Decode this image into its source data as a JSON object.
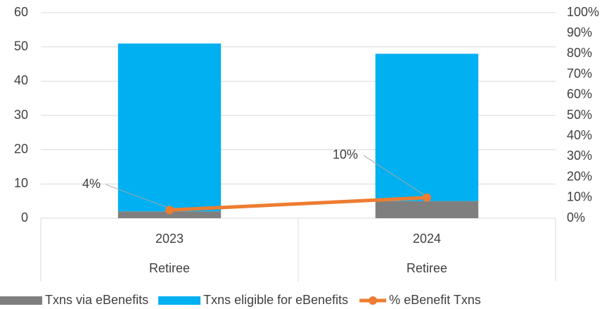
{
  "chart_data": {
    "type": "bar",
    "categories": [
      "2023",
      "2024"
    ],
    "groups": [
      "Retiree",
      "Retiree"
    ],
    "stacked": true,
    "series": [
      {
        "name": "Txns via eBenefits",
        "color": "#7f7f7f",
        "values": [
          2,
          5
        ]
      },
      {
        "name": "Txns eligible for eBenefits",
        "color": "#00b0f0",
        "values": [
          49,
          43
        ]
      },
      {
        "name": "% eBenefit Txns",
        "color": "#ed7d31",
        "type": "line",
        "axis": "y2",
        "values": [
          4,
          10
        ],
        "value_labels": [
          "4%",
          "10%"
        ]
      }
    ],
    "ylim": [
      0,
      60
    ],
    "yticks": [
      0,
      10,
      20,
      30,
      40,
      50,
      60
    ],
    "y2lim": [
      0,
      100
    ],
    "y2ticks": [
      {
        "value": 0,
        "label": "0%"
      },
      {
        "value": 10,
        "label": "10%"
      },
      {
        "value": 20,
        "label": "20%"
      },
      {
        "value": 30,
        "label": "30%"
      },
      {
        "value": 40,
        "label": "40%"
      },
      {
        "value": 50,
        "label": "50%"
      },
      {
        "value": 60,
        "label": "60%"
      },
      {
        "value": 70,
        "label": "70%"
      },
      {
        "value": 80,
        "label": "80%"
      },
      {
        "value": 90,
        "label": "90%"
      },
      {
        "value": 100,
        "label": "100%"
      }
    ],
    "grid": true,
    "legend": "bottom"
  }
}
